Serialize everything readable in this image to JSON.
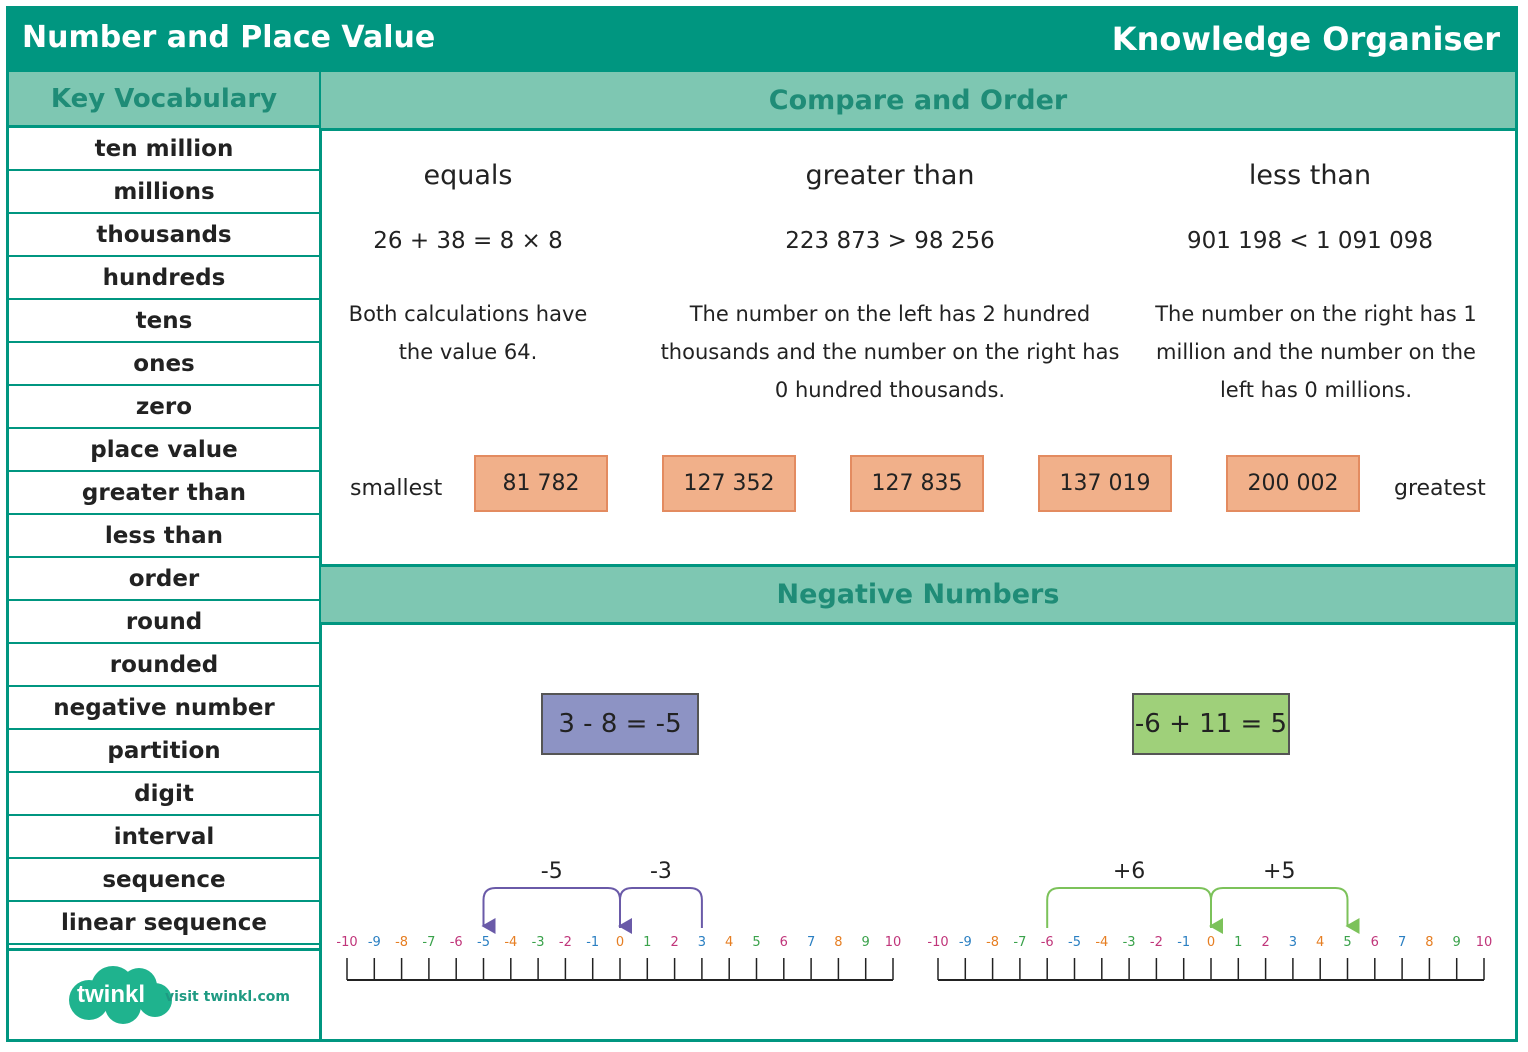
{
  "header": {
    "title": "Number and Place Value",
    "right_title": "Knowledge Organiser"
  },
  "sidebar": {
    "heading": "Key Vocabulary",
    "items": [
      "ten million",
      "millions",
      "thousands",
      "hundreds",
      "tens",
      "ones",
      "zero",
      "place value",
      "greater than",
      "less than",
      "order",
      "round",
      "rounded",
      "negative number",
      "partition",
      "digit",
      "interval",
      "sequence",
      "linear sequence"
    ]
  },
  "logo": {
    "word": "twinkl",
    "visit": "visit twinkl.com"
  },
  "compare": {
    "heading": "Compare and Order",
    "columns": [
      {
        "title": "equals",
        "calc": "26 + 38 = 8 × 8",
        "explain": [
          "Both calculations have",
          "the value 64."
        ]
      },
      {
        "title": "greater than",
        "calc": "223 873 > 98 256",
        "explain": [
          "The number on the left has 2 hundred",
          "thousands and the number on the right has",
          "0 hundred thousands."
        ]
      },
      {
        "title": "less than",
        "calc": "901 198 < 1 091 098",
        "explain": [
          "The number on the right has 1",
          "million and the number on the",
          "left has 0 millions."
        ]
      }
    ],
    "order": {
      "smallest": "smallest",
      "greatest": "greatest",
      "values": [
        "81 782",
        "127 352",
        "127 835",
        "137 019",
        "200 002"
      ]
    }
  },
  "negative": {
    "heading": "Negative Numbers",
    "equation1": "3 - 8 = -5",
    "equation2": "-6 + 11 = 5",
    "numberlines": [
      {
        "jumps": [
          {
            "label": "-5",
            "from": 0,
            "to": -5
          },
          {
            "label": "-3",
            "from": 3,
            "to": 0
          }
        ],
        "color": "#6a5aa8"
      },
      {
        "jumps": [
          {
            "label": "+6",
            "from": -6,
            "to": 0
          },
          {
            "label": "+5",
            "from": 0,
            "to": 5
          }
        ],
        "color": "#7cc25a"
      }
    ],
    "ticks": [
      "-10",
      "-9",
      "-8",
      "-7",
      "-6",
      "-5",
      "-4",
      "-3",
      "-2",
      "-1",
      "0",
      "1",
      "2",
      "3",
      "4",
      "5",
      "6",
      "7",
      "8",
      "9",
      "10"
    ],
    "tick_colors": [
      "#c0357a",
      "#2a7fc2",
      "#e67e22",
      "#3aa24b",
      "#c0357a",
      "#2a7fc2",
      "#e67e22",
      "#3aa24b",
      "#c0357a",
      "#2a7fc2",
      "#e67e22",
      "#3aa24b",
      "#c0357a",
      "#2a7fc2",
      "#e67e22",
      "#3aa24b",
      "#c0357a",
      "#2a7fc2",
      "#e67e22",
      "#3aa24b",
      "#c0357a"
    ]
  }
}
